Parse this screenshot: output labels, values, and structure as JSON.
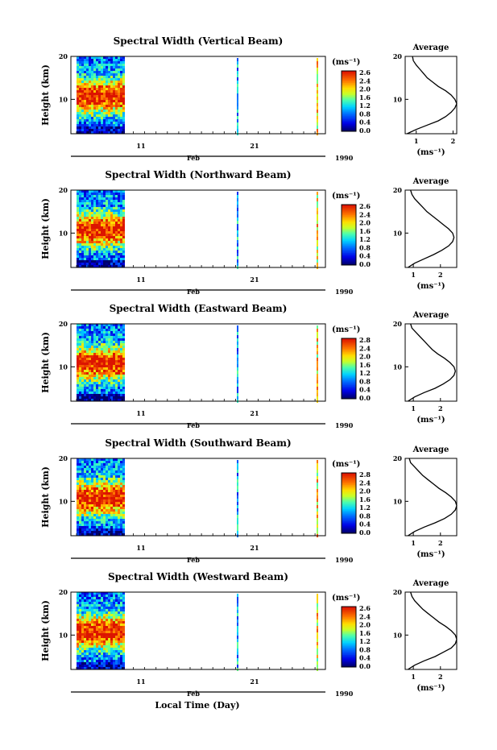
{
  "figure": {
    "bottom_label": "Local Time (Day)"
  },
  "chart_data": [
    {
      "type": "heatmap",
      "title": "Spectral Width (Vertical Beam)",
      "ylabel": "Height (km)",
      "y_ticks": [
        "20",
        "10"
      ],
      "ylim": [
        2,
        20
      ],
      "x_ticks": [
        "11",
        "21"
      ],
      "x_month": "Feb",
      "x_year": "1990",
      "colorbar": {
        "unit": "(ms⁻¹)",
        "ticks": [
          "2.6",
          "2.4",
          "2.0",
          "1.6",
          "1.2",
          "0.8",
          "0.4",
          "0.0"
        ],
        "range": [
          0,
          2.8
        ]
      },
      "average_profile": {
        "title": "Average",
        "x_ticks": [
          "1",
          "2"
        ],
        "xlim": [
          0.7,
          2.1
        ],
        "xlabel": "(ms⁻¹)",
        "height_km": [
          2,
          3,
          4,
          5,
          6,
          7,
          8,
          9,
          10,
          11,
          12,
          13,
          14,
          15,
          16,
          17,
          18,
          19,
          20
        ],
        "width_ms": [
          0.75,
          1.0,
          1.3,
          1.6,
          1.8,
          1.95,
          2.05,
          2.1,
          2.05,
          1.95,
          1.8,
          1.6,
          1.45,
          1.3,
          1.2,
          1.1,
          1.0,
          0.92,
          0.9
        ]
      }
    },
    {
      "type": "heatmap",
      "title": "Spectral Width (Northward Beam)",
      "ylabel": "Height (km)",
      "y_ticks": [
        "20",
        "10"
      ],
      "ylim": [
        2,
        20
      ],
      "x_ticks": [
        "11",
        "21"
      ],
      "x_month": "Feb",
      "x_year": "1990",
      "colorbar": {
        "unit": "(ms⁻¹)",
        "ticks": [
          "2.6",
          "2.4",
          "2.0",
          "1.6",
          "1.2",
          "0.8",
          "0.4",
          "0.0"
        ],
        "range": [
          0,
          2.8
        ]
      },
      "average_profile": {
        "title": "Average",
        "x_ticks": [
          "1",
          "2"
        ],
        "xlim": [
          0.7,
          2.6
        ],
        "xlabel": "(ms⁻¹)",
        "height_km": [
          2,
          3,
          4,
          5,
          6,
          7,
          8,
          9,
          10,
          11,
          12,
          13,
          14,
          15,
          16,
          17,
          18,
          19,
          20
        ],
        "width_ms": [
          0.8,
          1.05,
          1.4,
          1.75,
          2.05,
          2.3,
          2.45,
          2.5,
          2.45,
          2.3,
          2.1,
          1.9,
          1.7,
          1.5,
          1.35,
          1.2,
          1.05,
          0.95,
          0.9
        ]
      }
    },
    {
      "type": "heatmap",
      "title": "Spectral Width (Eastward Beam)",
      "ylabel": "Height (km)",
      "y_ticks": [
        "20",
        "10"
      ],
      "ylim": [
        2,
        20
      ],
      "x_ticks": [
        "11",
        "21"
      ],
      "x_month": "Feb",
      "x_year": "1990",
      "colorbar": {
        "unit": "(ms⁻¹)",
        "ticks": [
          "2.8",
          "2.4",
          "2.0",
          "1.6",
          "1.2",
          "0.8",
          "0.4",
          "0.0"
        ],
        "range": [
          0,
          2.8
        ]
      },
      "average_profile": {
        "title": "Average",
        "x_ticks": [
          "1",
          "2"
        ],
        "xlim": [
          0.7,
          2.6
        ],
        "xlabel": "(ms⁻¹)",
        "height_km": [
          2,
          3,
          4,
          5,
          6,
          7,
          8,
          9,
          10,
          11,
          12,
          13,
          14,
          15,
          16,
          17,
          18,
          19,
          20
        ],
        "width_ms": [
          0.8,
          1.05,
          1.4,
          1.8,
          2.1,
          2.35,
          2.5,
          2.55,
          2.5,
          2.35,
          2.15,
          1.9,
          1.7,
          1.55,
          1.4,
          1.25,
          1.1,
          0.95,
          0.9
        ]
      }
    },
    {
      "type": "heatmap",
      "title": "Spectral Width (Southward Beam)",
      "ylabel": "Height (km)",
      "y_ticks": [
        "20",
        "10"
      ],
      "ylim": [
        2,
        20
      ],
      "x_ticks": [
        "11",
        "21"
      ],
      "x_month": "Feb",
      "x_year": "1990",
      "colorbar": {
        "unit": "(ms⁻¹)",
        "ticks": [
          "2.8",
          "2.4",
          "2.0",
          "1.6",
          "1.2",
          "0.8",
          "0.4",
          "0.0"
        ],
        "range": [
          0,
          2.8
        ]
      },
      "average_profile": {
        "title": "Average",
        "x_ticks": [
          "1",
          "2"
        ],
        "xlim": [
          0.7,
          2.6
        ],
        "xlabel": "(ms⁻¹)",
        "height_km": [
          2,
          3,
          4,
          5,
          6,
          7,
          8,
          9,
          10,
          11,
          12,
          13,
          14,
          15,
          16,
          17,
          18,
          19,
          20
        ],
        "width_ms": [
          0.8,
          1.05,
          1.4,
          1.8,
          2.15,
          2.4,
          2.55,
          2.6,
          2.55,
          2.4,
          2.2,
          1.95,
          1.75,
          1.55,
          1.35,
          1.2,
          1.05,
          0.9,
          0.85
        ]
      }
    },
    {
      "type": "heatmap",
      "title": "Spectral Width (Westward Beam)",
      "ylabel": "Height (km)",
      "y_ticks": [
        "20",
        "10"
      ],
      "ylim": [
        2,
        20
      ],
      "x_ticks": [
        "11",
        "21"
      ],
      "x_month": "Feb",
      "x_year": "1990",
      "colorbar": {
        "unit": "(ms⁻¹)",
        "ticks": [
          "2.6",
          "2.4",
          "2.0",
          "1.6",
          "1.2",
          "0.8",
          "0.4",
          "0.0"
        ],
        "range": [
          0,
          2.8
        ]
      },
      "average_profile": {
        "title": "Average",
        "x_ticks": [
          "1",
          "2"
        ],
        "xlim": [
          0.7,
          2.6
        ],
        "xlabel": "(ms⁻¹)",
        "height_km": [
          2,
          3,
          4,
          5,
          6,
          7,
          8,
          9,
          10,
          11,
          12,
          13,
          14,
          15,
          16,
          17,
          18,
          19,
          20
        ],
        "width_ms": [
          0.8,
          1.05,
          1.4,
          1.8,
          2.1,
          2.4,
          2.55,
          2.6,
          2.55,
          2.4,
          2.2,
          1.95,
          1.75,
          1.55,
          1.35,
          1.2,
          1.05,
          0.95,
          0.9
        ]
      }
    }
  ]
}
